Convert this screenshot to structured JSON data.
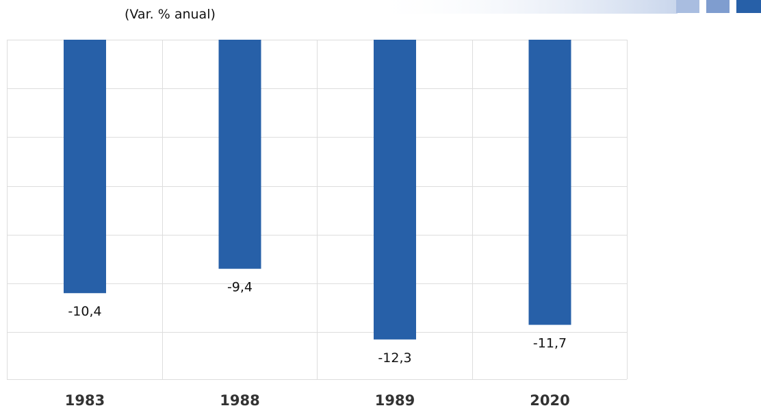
{
  "header": {
    "unit": "(Var. % anual)"
  },
  "colors": {
    "bar": "#2760A8",
    "grid": "#dddddd",
    "banner_light": "#A9BDE0",
    "banner_mid": "#7F9DCF",
    "banner_dark": "#2760A8"
  },
  "chart_data": {
    "type": "bar",
    "categories": [
      "1983",
      "1988",
      "1989",
      "2020"
    ],
    "values": [
      -10.4,
      -9.4,
      -12.3,
      -11.7
    ],
    "value_labels": [
      "-10,4",
      "-9,4",
      "-12,3",
      "-11,7"
    ],
    "title": "",
    "ylabel": "(Var. % anual)",
    "xlabel": "",
    "ylim": [
      -14,
      0
    ],
    "grid": true,
    "legend": "none"
  }
}
